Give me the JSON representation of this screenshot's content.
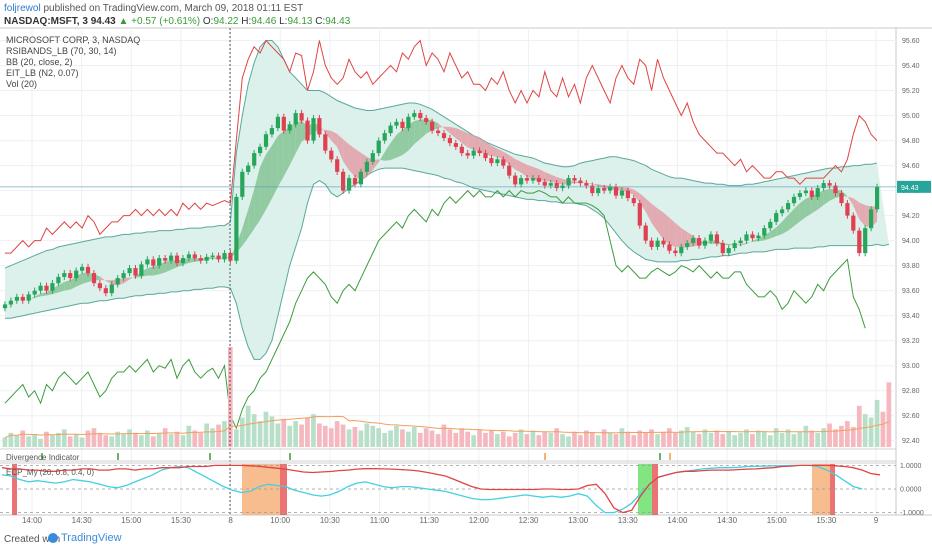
{
  "header": {
    "author": "foljrewol",
    "published": "published on TradingView.com, March 09, 2018 01:11 EST",
    "symbol": "NASDAQ:MSFT, 3",
    "last": "94.43",
    "change": "▲ +0.57 (+0.61%)",
    "o_label": "O:",
    "o_value": "94.22",
    "h_label": "H:",
    "h_value": "94.46",
    "l_label": "L:",
    "l_value": "94.13",
    "c_label": "C:",
    "c_value": "94.43"
  },
  "legend": {
    "title": "MICROSOFT CORP, 3, NASDAQ",
    "ind1": "RSIBANDS_LB (70, 30, 14)",
    "ind2": "BB (20, close, 2)",
    "ind3": "EIT_LB (N2, 0.07)",
    "ind4": "Vol (20)"
  },
  "pane2_label": "Divergence Indicator",
  "pane3_label": "ECP_My (20, 0.8, 0.4, 0)",
  "footer": {
    "created": "Created with",
    "brand": "TradingView"
  },
  "colors": {
    "up": "#26a65b",
    "down": "#e04050",
    "bb_fill": "#d8eeea",
    "bb_line": "#5aa89a",
    "rsi_upper": "#e04444",
    "rsi_lower": "#3d9c3d",
    "vol_up": "#b8dfc8",
    "vol_down": "#f4b8be",
    "vol_ma": "#f0a060",
    "ecp_red": "#e04444",
    "ecp_cyan": "#44d0e0",
    "hl_orange": "#f7b27a",
    "hl_green": "#6be06b",
    "hl_red": "#e85a5a"
  },
  "chart_data": [
    {
      "type": "candlestick",
      "title": "MICROSOFT CORP, 3, NASDAQ",
      "price_axis_ticks": [
        "95.60",
        "95.40",
        "95.20",
        "95.00",
        "94.80",
        "94.60",
        "94.40",
        "94.20",
        "94.00",
        "93.80",
        "93.60",
        "93.40",
        "93.20",
        "93.00",
        "92.80",
        "92.60",
        "92.40"
      ],
      "time_ticks": [
        "14:00",
        "14:30",
        "15:00",
        "15:30",
        "8",
        "10:00",
        "10:30",
        "11:00",
        "11:30",
        "12:00",
        "12:30",
        "13:00",
        "13:30",
        "14:00",
        "14:30",
        "15:00",
        "15:30",
        "9"
      ],
      "ylim": [
        92.35,
        95.7
      ],
      "current_price_line": 94.43,
      "closes": [
        93.49,
        93.52,
        93.55,
        93.52,
        93.57,
        93.6,
        93.64,
        93.6,
        93.66,
        93.71,
        93.74,
        93.7,
        93.76,
        93.79,
        93.74,
        93.66,
        93.62,
        93.58,
        93.65,
        93.7,
        93.74,
        93.78,
        93.72,
        93.81,
        93.85,
        93.8,
        93.86,
        93.84,
        93.88,
        93.82,
        93.86,
        93.89,
        93.86,
        93.84,
        93.87,
        93.88,
        93.85,
        93.9,
        93.84,
        94.35,
        94.55,
        94.6,
        94.7,
        94.75,
        94.85,
        94.9,
        94.99,
        94.88,
        94.93,
        95.02,
        94.96,
        94.8,
        94.98,
        94.85,
        94.72,
        94.65,
        94.55,
        94.4,
        94.5,
        94.45,
        94.55,
        94.63,
        94.7,
        94.8,
        94.86,
        94.92,
        94.95,
        94.9,
        94.99,
        95.02,
        94.98,
        94.95,
        94.88,
        94.86,
        94.82,
        94.78,
        94.75,
        94.7,
        94.68,
        94.72,
        94.7,
        94.66,
        94.62,
        94.65,
        94.6,
        94.52,
        94.45,
        94.5,
        94.48,
        94.5,
        94.47,
        94.44,
        94.46,
        94.42,
        94.44,
        94.5,
        94.48,
        94.46,
        94.44,
        94.38,
        94.42,
        94.4,
        94.43,
        94.36,
        94.4,
        94.34,
        94.3,
        94.12,
        94.0,
        93.95,
        94.0,
        93.97,
        93.92,
        93.9,
        93.95,
        93.98,
        94.02,
        93.96,
        94.0,
        94.05,
        93.98,
        93.9,
        93.94,
        93.98,
        94.0,
        94.05,
        94.02,
        94.04,
        94.1,
        94.15,
        94.22,
        94.25,
        94.3,
        94.35,
        94.38,
        94.4,
        94.35,
        94.42,
        94.46,
        94.44,
        94.38,
        94.3,
        94.2,
        94.08,
        93.9,
        94.1,
        94.25,
        94.43
      ],
      "bb_upper": [
        93.78,
        93.8,
        93.82,
        93.84,
        93.86,
        93.88,
        93.9,
        93.92,
        93.93,
        93.95,
        93.96,
        93.97,
        93.98,
        93.99,
        94.0,
        94.01,
        94.02,
        94.03,
        94.03,
        94.04,
        94.05,
        94.05,
        94.06,
        94.06,
        94.07,
        94.07,
        94.08,
        94.08,
        94.08,
        94.09,
        94.09,
        94.1,
        94.1,
        94.1,
        94.11,
        94.11,
        94.12,
        94.12,
        94.15,
        94.7,
        95.0,
        95.25,
        95.42,
        95.55,
        95.6,
        95.6,
        95.55,
        95.45,
        95.35,
        95.3,
        95.25,
        95.2,
        95.2,
        95.2,
        95.18,
        95.15,
        95.12,
        95.1,
        95.08,
        95.06,
        95.05,
        95.04,
        95.04,
        95.05,
        95.06,
        95.07,
        95.08,
        95.09,
        95.1,
        95.1,
        95.09,
        95.07,
        95.05,
        95.02,
        94.99,
        94.96,
        94.93,
        94.9,
        94.87,
        94.84,
        94.82,
        94.79,
        94.77,
        94.75,
        94.73,
        94.71,
        94.69,
        94.68,
        94.67,
        94.66,
        94.64,
        94.62,
        94.61,
        94.6,
        94.59,
        94.59,
        94.6,
        94.62,
        94.63,
        94.64,
        94.65,
        94.66,
        94.67,
        94.67,
        94.66,
        94.65,
        94.64,
        94.62,
        94.6,
        94.57,
        94.55,
        94.53,
        94.51,
        94.5,
        94.5,
        94.49,
        94.48,
        94.47,
        94.46,
        94.46,
        94.45,
        94.45,
        94.44,
        94.44,
        94.44,
        94.45,
        94.45,
        94.46,
        94.47,
        94.48,
        94.49,
        94.5,
        94.51,
        94.52,
        94.53,
        94.54,
        94.55,
        94.56,
        94.57,
        94.58,
        94.58,
        94.59,
        94.59,
        94.6,
        94.6,
        94.61,
        94.61,
        94.62
      ],
      "bb_lower": [
        93.38,
        93.38,
        93.39,
        93.4,
        93.41,
        93.42,
        93.43,
        93.44,
        93.45,
        93.46,
        93.47,
        93.48,
        93.49,
        93.5,
        93.5,
        93.51,
        93.52,
        93.52,
        93.53,
        93.54,
        93.54,
        93.55,
        93.56,
        93.56,
        93.57,
        93.57,
        93.58,
        93.58,
        93.59,
        93.59,
        93.6,
        93.6,
        93.61,
        93.61,
        93.62,
        93.62,
        93.63,
        93.63,
        93.62,
        93.5,
        93.3,
        93.15,
        93.05,
        93.05,
        93.1,
        93.2,
        93.4,
        93.6,
        93.8,
        93.95,
        94.1,
        94.3,
        94.45,
        94.48,
        94.45,
        94.38,
        94.35,
        94.38,
        94.42,
        94.45,
        94.48,
        94.52,
        94.55,
        94.57,
        94.58,
        94.58,
        94.58,
        94.58,
        94.57,
        94.56,
        94.55,
        94.54,
        94.53,
        94.52,
        94.5,
        94.49,
        94.47,
        94.46,
        94.44,
        94.42,
        94.41,
        94.4,
        94.39,
        94.38,
        94.37,
        94.36,
        94.35,
        94.34,
        94.33,
        94.33,
        94.32,
        94.32,
        94.31,
        94.31,
        94.3,
        94.3,
        94.3,
        94.29,
        94.28,
        94.25,
        94.22,
        94.18,
        94.12,
        94.06,
        94.0,
        93.95,
        93.91,
        93.88,
        93.85,
        93.84,
        93.83,
        93.83,
        93.83,
        93.83,
        93.84,
        93.84,
        93.85,
        93.85,
        93.86,
        93.87,
        93.87,
        93.88,
        93.88,
        93.89,
        93.9,
        93.9,
        93.91,
        93.91,
        93.91,
        93.92,
        93.93,
        93.93,
        93.93,
        93.94,
        93.94,
        93.94,
        93.94,
        93.95,
        93.95,
        93.96,
        93.96,
        93.96,
        93.96,
        93.96,
        93.96,
        93.96,
        93.96,
        93.97,
        93.96,
        93.97
      ],
      "rsi_upper": [
        93.9,
        93.9,
        93.95,
        94.0,
        93.95,
        94.0,
        94.0,
        94.1,
        94.05,
        94.1,
        94.15,
        94.1,
        94.15,
        94.1,
        94.2,
        94.15,
        94.05,
        94.1,
        94.15,
        94.15,
        94.2,
        94.2,
        94.25,
        94.2,
        94.25,
        94.2,
        94.25,
        94.2,
        94.25,
        94.2,
        94.3,
        94.25,
        94.3,
        94.25,
        94.3,
        94.28,
        94.3,
        94.32,
        94.3,
        94.8,
        95.3,
        95.45,
        95.55,
        95.5,
        95.6,
        95.55,
        95.5,
        95.45,
        95.35,
        95.5,
        95.48,
        95.2,
        95.35,
        95.6,
        95.4,
        95.3,
        95.25,
        95.3,
        95.45,
        95.35,
        95.3,
        95.35,
        95.25,
        95.3,
        95.35,
        95.4,
        95.35,
        95.5,
        95.45,
        95.55,
        95.6,
        95.4,
        95.5,
        95.45,
        95.35,
        95.5,
        95.4,
        95.3,
        95.35,
        95.25,
        95.25,
        95.2,
        95.3,
        95.25,
        95.35,
        95.2,
        95.1,
        95.2,
        95.1,
        95.2,
        95.15,
        95.35,
        95.2,
        95.15,
        95.3,
        95.15,
        95.25,
        95.1,
        95.3,
        95.4,
        95.3,
        95.2,
        95.1,
        95.3,
        95.4,
        95.3,
        95.25,
        95.45,
        95.4,
        95.2,
        95.45,
        95.3,
        95.2,
        95.1,
        95.0,
        95.1,
        94.95,
        94.85,
        94.8,
        94.75,
        94.7,
        94.7,
        94.65,
        94.6,
        94.65,
        94.55,
        94.6,
        94.55,
        94.5,
        94.5,
        94.55,
        94.55,
        94.5,
        94.5,
        94.45,
        94.5,
        94.5,
        94.5,
        94.5,
        94.55,
        94.6,
        94.55,
        94.65,
        94.85,
        95.0,
        94.95,
        94.85,
        94.8
      ],
      "rsi_lower": [
        92.7,
        92.75,
        92.8,
        92.85,
        92.75,
        92.8,
        92.7,
        92.85,
        92.8,
        92.9,
        92.95,
        92.9,
        92.85,
        92.9,
        92.95,
        92.85,
        92.75,
        92.8,
        92.9,
        92.95,
        92.95,
        93.0,
        92.95,
        93.0,
        93.05,
        92.95,
        93.0,
        92.98,
        93.05,
        92.9,
        93.0,
        93.05,
        92.95,
        92.9,
        92.95,
        92.98,
        92.9,
        93.0,
        92.6,
        92.5,
        92.65,
        92.75,
        92.8,
        92.9,
        92.95,
        93.05,
        93.15,
        93.25,
        93.35,
        93.5,
        93.6,
        93.7,
        93.75,
        93.7,
        93.65,
        93.55,
        93.5,
        93.6,
        93.65,
        93.6,
        93.7,
        93.8,
        93.9,
        94.0,
        94.05,
        94.1,
        94.15,
        94.1,
        94.2,
        94.25,
        94.2,
        94.15,
        94.25,
        94.2,
        94.3,
        94.35,
        94.3,
        94.35,
        94.4,
        94.35,
        94.4,
        94.35,
        94.35,
        94.4,
        94.35,
        94.4,
        94.35,
        94.4,
        94.38,
        94.38,
        94.4,
        94.38,
        94.35,
        94.35,
        94.3,
        94.35,
        94.3,
        94.3,
        94.3,
        94.28,
        94.25,
        94.2,
        94.0,
        93.8,
        93.75,
        93.8,
        93.75,
        93.7,
        93.7,
        93.75,
        93.78,
        93.75,
        93.72,
        93.75,
        93.8,
        93.78,
        93.75,
        93.8,
        93.75,
        93.7,
        93.75,
        93.7,
        93.7,
        93.75,
        93.75,
        93.65,
        93.6,
        93.55,
        93.55,
        93.6,
        93.55,
        93.45,
        93.5,
        93.6,
        93.55,
        93.5,
        93.55,
        93.65,
        93.6,
        93.7,
        93.75,
        93.8,
        93.85,
        93.55,
        93.45,
        93.3
      ],
      "volume": [
        8,
        12,
        10,
        14,
        9,
        11,
        7,
        13,
        10,
        12,
        15,
        9,
        11,
        8,
        14,
        16,
        12,
        10,
        9,
        13,
        11,
        15,
        12,
        10,
        14,
        9,
        12,
        16,
        11,
        13,
        10,
        18,
        14,
        12,
        20,
        16,
        19,
        22,
        85,
        15,
        25,
        35,
        28,
        22,
        30,
        26,
        20,
        24,
        18,
        22,
        19,
        25,
        28,
        20,
        18,
        16,
        22,
        19,
        15,
        17,
        14,
        20,
        18,
        16,
        12,
        14,
        18,
        15,
        13,
        17,
        12,
        16,
        14,
        11,
        19,
        15,
        12,
        16,
        13,
        10,
        15,
        12,
        14,
        11,
        13,
        9,
        12,
        15,
        11,
        14,
        10,
        13,
        12,
        16,
        11,
        9,
        13,
        10,
        14,
        12,
        10,
        15,
        12,
        11,
        16,
        13,
        10,
        14,
        12,
        15,
        11,
        13,
        16,
        12,
        14,
        17,
        13,
        11,
        15,
        12,
        14,
        11,
        13,
        10,
        12,
        15,
        11,
        14,
        13,
        10,
        16,
        12,
        15,
        11,
        13,
        18,
        14,
        12,
        16,
        20,
        15,
        18,
        22,
        17,
        35,
        28,
        25,
        40,
        30,
        55
      ]
    },
    {
      "type": "line",
      "title": "ECP_My (20, 0.8, 0.4, 0)",
      "axis_ticks": [
        "1.0000",
        "0.0000",
        "-1.0000"
      ],
      "ylim": [
        -1.1,
        1.1
      ],
      "red_line": [
        0.9,
        0.85,
        0.85,
        0.8,
        0.8,
        0.75,
        0.75,
        0.8,
        0.8,
        0.85,
        0.85,
        0.8,
        0.8,
        0.85,
        0.85,
        0.8,
        0.85,
        0.85,
        0.9,
        0.9,
        0.9,
        0.95,
        0.95,
        0.95,
        1.0,
        1.0,
        1.0,
        1.0,
        0.98,
        0.96,
        0.92,
        0.88,
        0.84,
        0.78,
        0.72,
        0.7,
        0.72,
        0.74,
        0.78,
        0.8,
        0.84,
        0.86,
        0.86,
        0.85,
        0.84,
        0.82,
        0.8,
        0.76,
        0.7,
        0.62,
        0.55,
        0.4,
        0.25,
        0.1,
        0.0,
        -0.02,
        -0.02,
        -0.02,
        -0.02,
        -0.02,
        -0.02,
        0.0,
        0.0,
        -0.02,
        -0.02,
        0.0,
        0.15,
        0.2,
        -0.2,
        -0.8,
        -1.0,
        -0.9,
        -0.3,
        0.2,
        0.5,
        0.6,
        0.7,
        0.75,
        0.75,
        0.78,
        0.8,
        0.8,
        0.8,
        0.82,
        0.84,
        0.85,
        0.88,
        0.9,
        0.95,
        0.97,
        1.0,
        1.0,
        1.0,
        1.0,
        0.98,
        0.95,
        0.9,
        0.8,
        0.65,
        0.6
      ],
      "cyan_line": [
        0.6,
        0.55,
        0.4,
        0.3,
        0.35,
        0.3,
        0.25,
        0.3,
        0.4,
        0.35,
        0.3,
        0.2,
        0.1,
        0.05,
        0.15,
        0.3,
        0.45,
        0.6,
        0.8,
        0.9,
        0.95,
        0.9,
        0.7,
        0.5,
        0.3,
        0.1,
        -0.05,
        -0.15,
        -0.1,
        0.1,
        0.2,
        0.15,
        0.1,
        -0.05,
        -0.15,
        -0.25,
        -0.3,
        -0.25,
        -0.1,
        0.1,
        0.25,
        0.3,
        0.2,
        0.1,
        0.05,
        0.1,
        0.1,
        0.05,
        0.0,
        -0.05,
        -0.1,
        -0.2,
        -0.3,
        -0.4,
        -0.45,
        -0.45,
        -0.4,
        -0.35,
        -0.3,
        -0.25,
        -0.3,
        -0.35,
        -0.3,
        -0.35,
        -0.3,
        -0.2,
        -0.3,
        -0.7,
        -1.0,
        -1.0,
        -0.85,
        -0.6,
        -0.2,
        0.2,
        0.5,
        0.6,
        0.7,
        0.75,
        0.8,
        0.85,
        0.88,
        0.9,
        0.9,
        0.92,
        0.95,
        0.96,
        0.97,
        0.98,
        0.98,
        1.0,
        1.0,
        1.0,
        0.95,
        0.8,
        0.6,
        0.35,
        0.1,
        0.0
      ]
    }
  ]
}
